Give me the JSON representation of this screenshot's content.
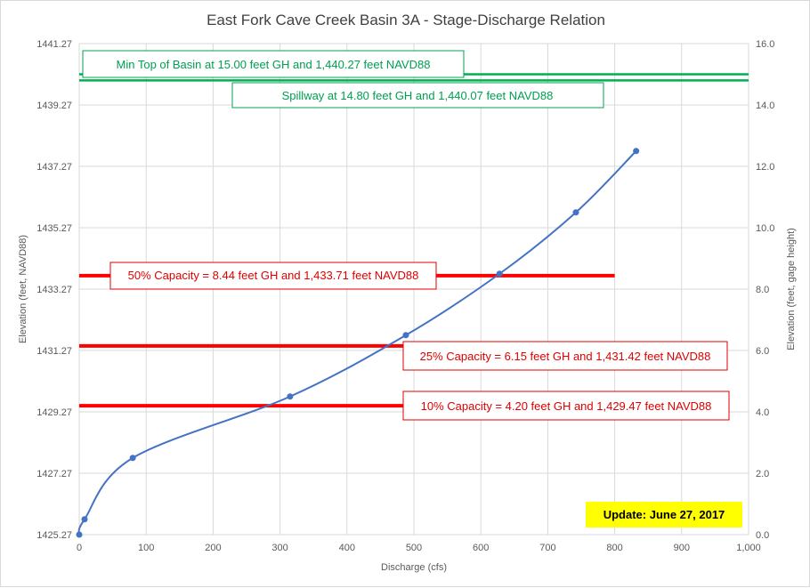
{
  "chart_data": {
    "type": "scatter",
    "title": "East Fork Cave Creek Basin 3A - Stage-Discharge Relation",
    "xlabel": "Discharge (cfs)",
    "ylabel_left": "Elevation (feet, NAVD88)",
    "ylabel_right": "Elevation (feet, gage height)",
    "xlim": [
      0,
      1000
    ],
    "ylim_left": [
      1425.27,
      1441.27
    ],
    "ylim_right": [
      0,
      16
    ],
    "x_ticks": [
      "0",
      "100",
      "200",
      "300",
      "400",
      "500",
      "600",
      "700",
      "800",
      "900",
      "1,000"
    ],
    "y_left_ticks": [
      "1425.27",
      "1427.27",
      "1429.27",
      "1431.27",
      "1433.27",
      "1435.27",
      "1437.27",
      "1439.27",
      "1441.27"
    ],
    "y_right_ticks": [
      "0.0",
      "2.0",
      "4.0",
      "6.0",
      "8.0",
      "10.0",
      "12.0",
      "14.0",
      "16.0"
    ],
    "grid": true,
    "series": [
      {
        "color": "#4472c4",
        "points": [
          {
            "x": 0,
            "y": 0.0
          },
          {
            "x": 8,
            "y": 0.5
          },
          {
            "x": 80,
            "y": 2.5
          },
          {
            "x": 315,
            "y": 4.5
          },
          {
            "x": 488,
            "y": 6.5
          },
          {
            "x": 628,
            "y": 8.5
          },
          {
            "x": 742,
            "y": 10.5
          },
          {
            "x": 832,
            "y": 12.5
          }
        ]
      }
    ],
    "reference_lines": [
      {
        "label": "Min Top of Basin at 15.00 feet GH and 1,440.27 feet NAVD88",
        "y": 15.0,
        "x_start": 0,
        "x_end": 1000,
        "color": "#00b050"
      },
      {
        "label": "Spillway at 14.80 feet GH and 1,440.07 feet NAVD88",
        "y": 14.8,
        "x_start": 0,
        "x_end": 1000,
        "color": "#00b050"
      },
      {
        "label": "50% Capacity = 8.44 feet GH and 1,433.71  feet NAVD88",
        "y": 8.44,
        "x_start": 0,
        "x_end": 800,
        "color": "#ff0000"
      },
      {
        "label": "25% Capacity = 6.15 feet GH and 1,431.42  feet NAVD88",
        "y": 6.15,
        "x_start": 0,
        "x_end": 490,
        "color": "#ff0000"
      },
      {
        "label": "10% Capacity = 4.20 feet GH and 1,429.47  feet NAVD88",
        "y": 4.2,
        "x_start": 0,
        "x_end": 490,
        "color": "#ff0000"
      }
    ],
    "update_note": "Update: June 27, 2017"
  }
}
